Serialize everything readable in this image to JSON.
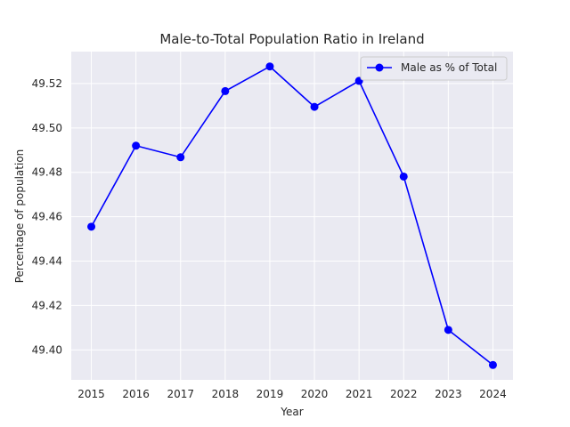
{
  "chart_data": {
    "type": "line",
    "title": "Male-to-Total Population Ratio in Ireland",
    "xlabel": "Year",
    "ylabel": "Percentage of population",
    "x": [
      2015,
      2016,
      2017,
      2018,
      2019,
      2020,
      2021,
      2022,
      2023,
      2024
    ],
    "series": [
      {
        "name": "Male as % of Total",
        "values": [
          49.4555,
          49.492,
          49.4868,
          49.5166,
          49.5277,
          49.5095,
          49.5212,
          49.4781,
          49.409,
          49.3932
        ]
      }
    ],
    "xlim": [
      2014.55,
      2024.45
    ],
    "ylim": [
      49.3865,
      49.5344
    ],
    "yticks": [
      "49.40",
      "49.42",
      "49.44",
      "49.46",
      "49.48",
      "49.50",
      "49.52"
    ],
    "xticks": [
      "2015",
      "2016",
      "2017",
      "2018",
      "2019",
      "2020",
      "2021",
      "2022",
      "2023",
      "2024"
    ],
    "grid": true,
    "legend_position": "top-right",
    "colors": {
      "line": "#0000ff",
      "plot_background": "#eaeaf2",
      "grid": "#ffffff"
    }
  }
}
